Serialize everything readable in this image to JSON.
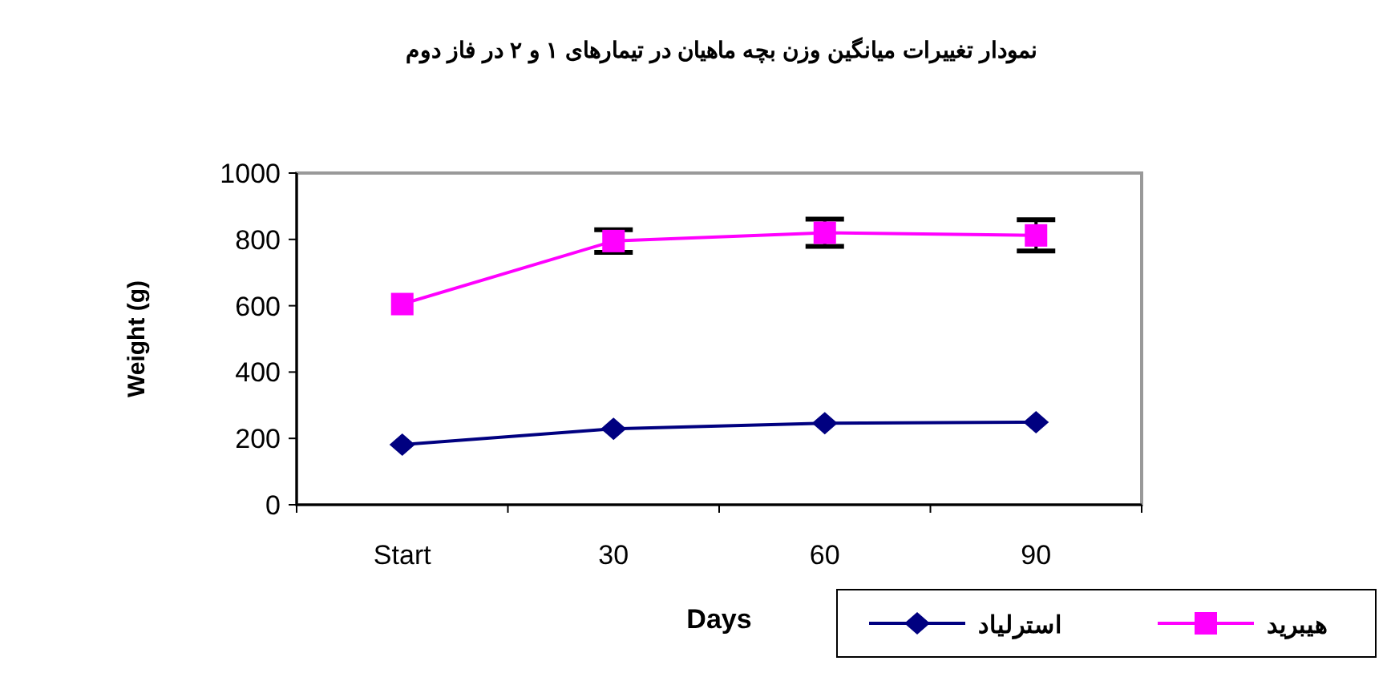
{
  "chart_data": {
    "type": "line",
    "title": "نمودار تغییرات میانگین وزن بچه ماهیان در تیمارهای ۱ و ۲  در فاز دوم",
    "xlabel": "Days",
    "ylabel": "Weight (g)",
    "categories": [
      "Start",
      "30",
      "60",
      "90"
    ],
    "series": [
      {
        "name": "استرلیاد",
        "color": "#000080",
        "marker": "diamond",
        "values": [
          181,
          229,
          246,
          249
        ],
        "errors": [
          null,
          null,
          null,
          null
        ]
      },
      {
        "name": "هیبرید",
        "color": "#ff00ff",
        "marker": "square",
        "values": [
          605,
          795,
          820,
          812
        ],
        "errors": [
          null,
          34,
          41,
          47
        ]
      }
    ],
    "ylim": [
      0,
      1000
    ],
    "yticks": [
      0,
      200,
      400,
      600,
      800,
      1000
    ],
    "grid": false,
    "legend": "bottom right"
  }
}
